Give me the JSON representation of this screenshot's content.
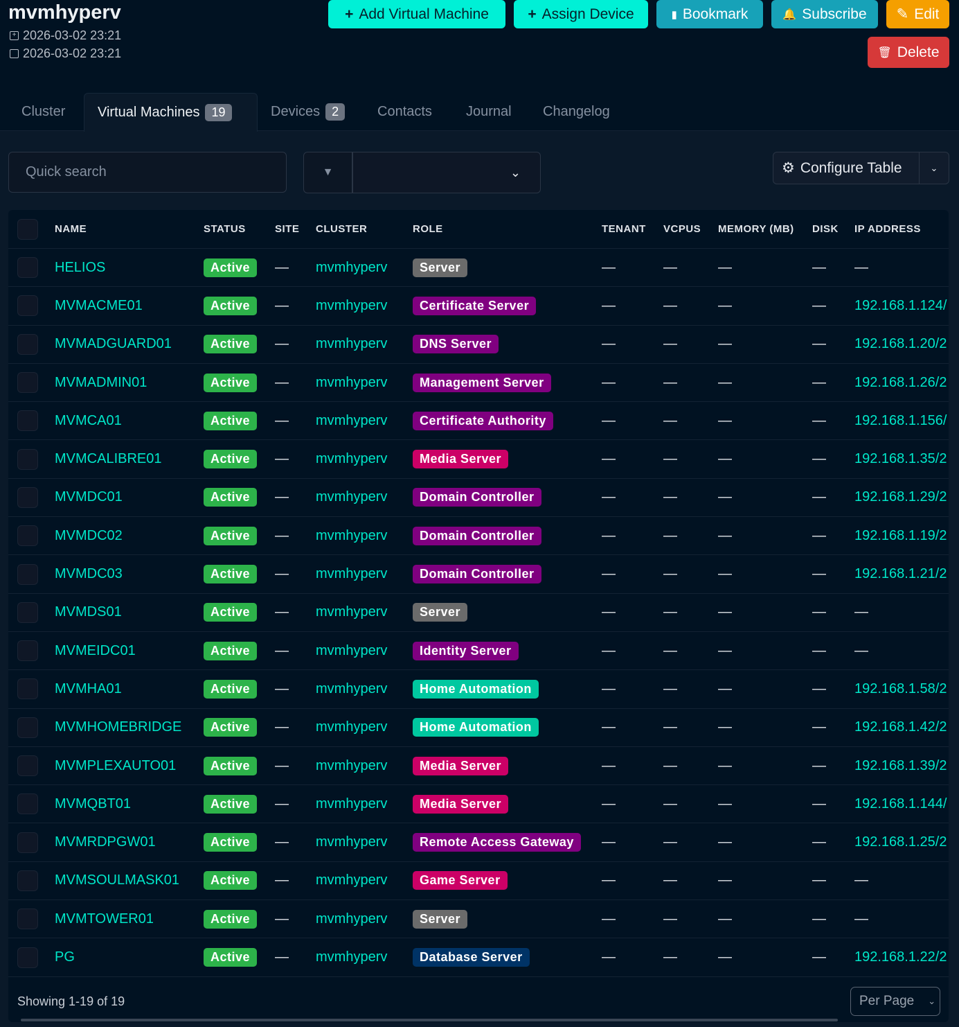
{
  "header": {
    "title": "mvmhyperv",
    "created": "2026-03-02 23:21",
    "updated": "2026-03-02 23:21"
  },
  "actions": {
    "add_vm": "Add Virtual Machine",
    "assign_device": "Assign Device",
    "bookmark": "Bookmark",
    "subscribe": "Subscribe",
    "edit": "Edit",
    "delete": "Delete"
  },
  "tabs": [
    {
      "label": "Cluster"
    },
    {
      "label": "Virtual Machines",
      "count": "19"
    },
    {
      "label": "Devices",
      "count": "2"
    },
    {
      "label": "Contacts"
    },
    {
      "label": "Journal"
    },
    {
      "label": "Changelog"
    }
  ],
  "toolbar": {
    "search_placeholder": "Quick search",
    "configure": "Configure Table"
  },
  "columns": [
    "NAME",
    "STATUS",
    "SITE",
    "CLUSTER",
    "ROLE",
    "TENANT",
    "VCPUS",
    "MEMORY (MB)",
    "DISK",
    "IP ADDRESS"
  ],
  "role_colors": {
    "Server": "#6b6b6b",
    "Certificate Server": "#800080",
    "DNS Server": "#800080",
    "Management Server": "#800080",
    "Certificate Authority": "#800080",
    "Media Server": "#cc0066",
    "Domain Controller": "#800080",
    "Identity Server": "#800080",
    "Home Automation": "#00c8a0",
    "Remote Access Gateway": "#800080",
    "Game Server": "#cc0066",
    "Database Server": "#003366"
  },
  "status_color": "#2db34a",
  "rows": [
    {
      "name": "HELIOS",
      "status": "Active",
      "site": "—",
      "cluster": "mvmhyperv",
      "role": "Server",
      "tenant": "—",
      "vcpus": "—",
      "memory": "—",
      "disk": "—",
      "ip": "—"
    },
    {
      "name": "MVMACME01",
      "status": "Active",
      "site": "—",
      "cluster": "mvmhyperv",
      "role": "Certificate Server",
      "tenant": "—",
      "vcpus": "—",
      "memory": "—",
      "disk": "—",
      "ip": "192.168.1.124/"
    },
    {
      "name": "MVMADGUARD01",
      "status": "Active",
      "site": "—",
      "cluster": "mvmhyperv",
      "role": "DNS Server",
      "tenant": "—",
      "vcpus": "—",
      "memory": "—",
      "disk": "—",
      "ip": "192.168.1.20/2"
    },
    {
      "name": "MVMADMIN01",
      "status": "Active",
      "site": "—",
      "cluster": "mvmhyperv",
      "role": "Management Server",
      "tenant": "—",
      "vcpus": "—",
      "memory": "—",
      "disk": "—",
      "ip": "192.168.1.26/2"
    },
    {
      "name": "MVMCA01",
      "status": "Active",
      "site": "—",
      "cluster": "mvmhyperv",
      "role": "Certificate Authority",
      "tenant": "—",
      "vcpus": "—",
      "memory": "—",
      "disk": "—",
      "ip": "192.168.1.156/"
    },
    {
      "name": "MVMCALIBRE01",
      "status": "Active",
      "site": "—",
      "cluster": "mvmhyperv",
      "role": "Media Server",
      "tenant": "—",
      "vcpus": "—",
      "memory": "—",
      "disk": "—",
      "ip": "192.168.1.35/2"
    },
    {
      "name": "MVMDC01",
      "status": "Active",
      "site": "—",
      "cluster": "mvmhyperv",
      "role": "Domain Controller",
      "tenant": "—",
      "vcpus": "—",
      "memory": "—",
      "disk": "—",
      "ip": "192.168.1.29/2"
    },
    {
      "name": "MVMDC02",
      "status": "Active",
      "site": "—",
      "cluster": "mvmhyperv",
      "role": "Domain Controller",
      "tenant": "—",
      "vcpus": "—",
      "memory": "—",
      "disk": "—",
      "ip": "192.168.1.19/2"
    },
    {
      "name": "MVMDC03",
      "status": "Active",
      "site": "—",
      "cluster": "mvmhyperv",
      "role": "Domain Controller",
      "tenant": "—",
      "vcpus": "—",
      "memory": "—",
      "disk": "—",
      "ip": "192.168.1.21/2"
    },
    {
      "name": "MVMDS01",
      "status": "Active",
      "site": "—",
      "cluster": "mvmhyperv",
      "role": "Server",
      "tenant": "—",
      "vcpus": "—",
      "memory": "—",
      "disk": "—",
      "ip": "—"
    },
    {
      "name": "MVMEIDC01",
      "status": "Active",
      "site": "—",
      "cluster": "mvmhyperv",
      "role": "Identity Server",
      "tenant": "—",
      "vcpus": "—",
      "memory": "—",
      "disk": "—",
      "ip": "—"
    },
    {
      "name": "MVMHA01",
      "status": "Active",
      "site": "—",
      "cluster": "mvmhyperv",
      "role": "Home Automation",
      "tenant": "—",
      "vcpus": "—",
      "memory": "—",
      "disk": "—",
      "ip": "192.168.1.58/2"
    },
    {
      "name": "MVMHOMEBRIDGE",
      "status": "Active",
      "site": "—",
      "cluster": "mvmhyperv",
      "role": "Home Automation",
      "tenant": "—",
      "vcpus": "—",
      "memory": "—",
      "disk": "—",
      "ip": "192.168.1.42/2"
    },
    {
      "name": "MVMPLEXAUTO01",
      "status": "Active",
      "site": "—",
      "cluster": "mvmhyperv",
      "role": "Media Server",
      "tenant": "—",
      "vcpus": "—",
      "memory": "—",
      "disk": "—",
      "ip": "192.168.1.39/2"
    },
    {
      "name": "MVMQBT01",
      "status": "Active",
      "site": "—",
      "cluster": "mvmhyperv",
      "role": "Media Server",
      "tenant": "—",
      "vcpus": "—",
      "memory": "—",
      "disk": "—",
      "ip": "192.168.1.144/"
    },
    {
      "name": "MVMRDPGW01",
      "status": "Active",
      "site": "—",
      "cluster": "mvmhyperv",
      "role": "Remote Access Gateway",
      "tenant": "—",
      "vcpus": "—",
      "memory": "—",
      "disk": "—",
      "ip": "192.168.1.25/2"
    },
    {
      "name": "MVMSOULMASK01",
      "status": "Active",
      "site": "—",
      "cluster": "mvmhyperv",
      "role": "Game Server",
      "tenant": "—",
      "vcpus": "—",
      "memory": "—",
      "disk": "—",
      "ip": "—"
    },
    {
      "name": "MVMTOWER01",
      "status": "Active",
      "site": "—",
      "cluster": "mvmhyperv",
      "role": "Server",
      "tenant": "—",
      "vcpus": "—",
      "memory": "—",
      "disk": "—",
      "ip": "—"
    },
    {
      "name": "PG",
      "status": "Active",
      "site": "—",
      "cluster": "mvmhyperv",
      "role": "Database Server",
      "tenant": "—",
      "vcpus": "—",
      "memory": "—",
      "disk": "—",
      "ip": "192.168.1.22/2"
    }
  ],
  "footer": {
    "showing": "Showing 1-19 of 19",
    "per_page": "Per Page"
  }
}
